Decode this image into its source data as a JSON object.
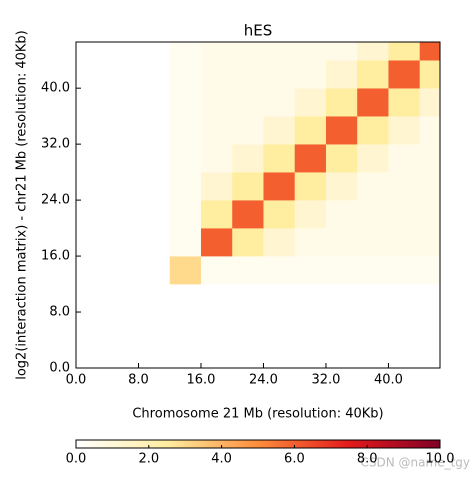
{
  "chart_data": {
    "type": "heatmap",
    "title": "hES",
    "xlabel": "Chromosome 21 Mb (resolution: 40Kb)",
    "ylabel": "log2(interaction matrix) - chr21 Mb (resolution: 40Kb)",
    "bin_edges": [
      0,
      4,
      8,
      12,
      16,
      20,
      24,
      28,
      32,
      36,
      40,
      44,
      48
    ],
    "matrix": [
      [
        0,
        0,
        0,
        0,
        0,
        0,
        0,
        0,
        0,
        0,
        0,
        0
      ],
      [
        0,
        0,
        0,
        0,
        0,
        0,
        0,
        0,
        0,
        0,
        0,
        0
      ],
      [
        0,
        0,
        0,
        0,
        0,
        0,
        0,
        0,
        0,
        0,
        0,
        0
      ],
      [
        0,
        0,
        0,
        3,
        0.4,
        0.4,
        0.4,
        0.4,
        0.4,
        0.4,
        0.4,
        0.4
      ],
      [
        0,
        0,
        0,
        0.4,
        6,
        2.5,
        1.2,
        0.6,
        0.6,
        0.6,
        0.6,
        0.6
      ],
      [
        0,
        0,
        0,
        0.4,
        2.5,
        6,
        2.5,
        1.2,
        0.6,
        0.6,
        0.6,
        0.6
      ],
      [
        0,
        0,
        0,
        0.4,
        1.2,
        2.5,
        6,
        2.5,
        1.2,
        0.6,
        0.6,
        0.6
      ],
      [
        0,
        0,
        0,
        0.4,
        0.6,
        1.2,
        2.5,
        6,
        2.5,
        1.2,
        0.6,
        0.6
      ],
      [
        0,
        0,
        0,
        0.4,
        0.6,
        0.6,
        1.2,
        2.5,
        6,
        2.5,
        1.2,
        0.6
      ],
      [
        0,
        0,
        0,
        0.4,
        0.6,
        0.6,
        0.6,
        1.2,
        2.5,
        6,
        2.5,
        1.2
      ],
      [
        0,
        0,
        0,
        0.4,
        0.6,
        0.6,
        0.6,
        0.6,
        1.2,
        2.5,
        6,
        2.5
      ],
      [
        0,
        0,
        0,
        0.4,
        0.6,
        0.6,
        0.6,
        0.6,
        0.6,
        1.2,
        2.5,
        6
      ]
    ],
    "xlim": [
      0,
      46.6
    ],
    "ylim": [
      0,
      46.6
    ],
    "xticks": [
      {
        "value": 0,
        "label": "0.0"
      },
      {
        "value": 8,
        "label": "8.0"
      },
      {
        "value": 16,
        "label": "16.0"
      },
      {
        "value": 24,
        "label": "24.0"
      },
      {
        "value": 32,
        "label": "32.0"
      },
      {
        "value": 40,
        "label": "40.0"
      }
    ],
    "yticks": [
      {
        "value": 0,
        "label": "0.0"
      },
      {
        "value": 8,
        "label": "8.0"
      },
      {
        "value": 16,
        "label": "16.0"
      },
      {
        "value": 24,
        "label": "24.0"
      },
      {
        "value": 32,
        "label": "32.0"
      },
      {
        "value": 40,
        "label": "40.0"
      }
    ],
    "clim": [
      0,
      10
    ],
    "cticks": [
      {
        "value": 0,
        "label": "0.0"
      },
      {
        "value": 2,
        "label": "2.0"
      },
      {
        "value": 4,
        "label": "4.0"
      },
      {
        "value": 6,
        "label": "6.0"
      },
      {
        "value": 8,
        "label": "8.0"
      },
      {
        "value": 10,
        "label": "10.0"
      }
    ],
    "colormap": [
      "#ffffff",
      "#ffeda0",
      "#fd8d3c",
      "#e31a1c",
      "#800026"
    ],
    "watermark": "CSDN @name_tgy"
  }
}
